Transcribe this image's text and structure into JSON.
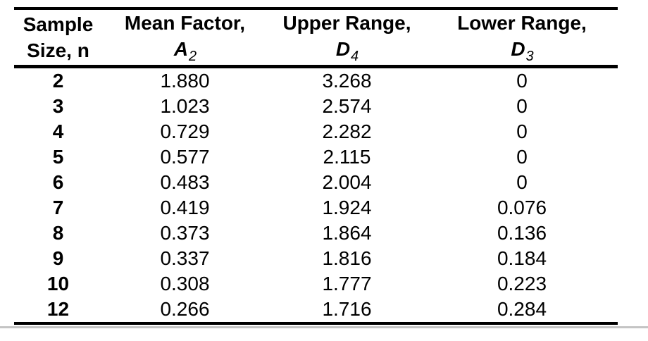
{
  "table": {
    "columns": [
      {
        "line1": "Sample",
        "line2": "Size, n"
      },
      {
        "line1": "Mean Factor,",
        "symbol": "A",
        "subscript": "2"
      },
      {
        "line1": "Upper Range,",
        "symbol": "D",
        "subscript": "4"
      },
      {
        "line1": "Lower Range,",
        "symbol": "D",
        "subscript": "3"
      }
    ],
    "rows": [
      [
        "2",
        "1.880",
        "3.268",
        "0"
      ],
      [
        "3",
        "1.023",
        "2.574",
        "0"
      ],
      [
        "4",
        "0.729",
        "2.282",
        "0"
      ],
      [
        "5",
        "0.577",
        "2.115",
        "0"
      ],
      [
        "6",
        "0.483",
        "2.004",
        "0"
      ],
      [
        "7",
        "0.419",
        "1.924",
        "0.076"
      ],
      [
        "8",
        "0.373",
        "1.864",
        "0.136"
      ],
      [
        "9",
        "0.337",
        "1.816",
        "0.184"
      ],
      [
        "10",
        "0.308",
        "1.777",
        "0.223"
      ],
      [
        "12",
        "0.266",
        "1.716",
        "0.284"
      ]
    ]
  },
  "colors": {
    "rule": "#000000",
    "text": "#000000",
    "bottom_line": "#c4c4c4",
    "background": "#ffffff"
  }
}
